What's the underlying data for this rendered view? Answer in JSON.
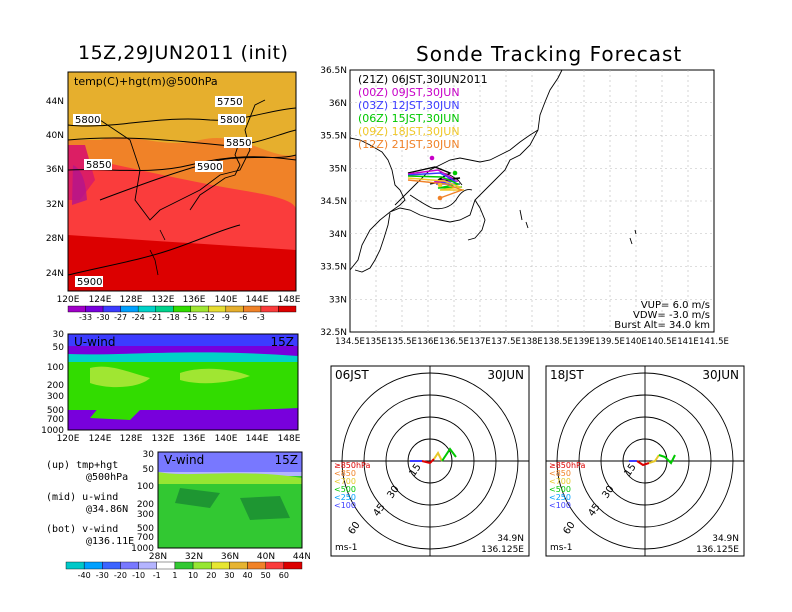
{
  "titles": {
    "left": "15Z,29JUN2011 (init)",
    "right": "Sonde Tracking Forecast"
  },
  "map500": {
    "label": "temp(C)+hgt(m)@500hPa",
    "lat_ticks": [
      "44N",
      "40N",
      "36N",
      "32N",
      "28N",
      "24N"
    ],
    "lon_ticks": [
      "120E",
      "124E",
      "128E",
      "132E",
      "136E",
      "140E",
      "144E",
      "148E"
    ],
    "contour_labels": [
      "5750",
      "5800",
      "5800",
      "5850",
      "5850",
      "5900",
      "5900"
    ],
    "colorbar_ticks": [
      "-33",
      "-30",
      "-27",
      "-24",
      "-21",
      "-18",
      "-15",
      "-12",
      "-9",
      "-6",
      "-3"
    ],
    "colorbar_colors": [
      "#a000c8",
      "#7800dc",
      "#3c3cff",
      "#00a0ff",
      "#00d2c8",
      "#00d28c",
      "#32dc00",
      "#a0e632",
      "#e6dc32",
      "#e6af2d",
      "#f08228",
      "#fa3c3c",
      "#dc0000"
    ]
  },
  "uwind": {
    "label": "U-wind",
    "time": "15Z",
    "p_ticks": [
      "30",
      "50",
      "100",
      "200",
      "300",
      "500",
      "700",
      "1000"
    ],
    "lon_ticks": [
      "120E",
      "124E",
      "128E",
      "132E",
      "136E",
      "140E",
      "144E",
      "148E"
    ]
  },
  "vwind": {
    "label": "V-wind",
    "time": "15Z",
    "p_ticks": [
      "30",
      "50",
      "100",
      "200",
      "300",
      "500",
      "700",
      "1000"
    ],
    "lat_ticks": [
      "28N",
      "32N",
      "36N",
      "40N",
      "44N"
    ],
    "colorbar_ticks": [
      "-40",
      "-30",
      "-20",
      "-10",
      "-1",
      "1",
      "10",
      "20",
      "30",
      "40",
      "50",
      "60"
    ],
    "colorbar_colors": [
      "#00c8c8",
      "#00a0ff",
      "#3c64ff",
      "#7878ff",
      "#b4b4ff",
      "#ffffff",
      "#32c832",
      "#96e632",
      "#e6e632",
      "#e6b432",
      "#f08228",
      "#fa3c3c",
      "#dc0000"
    ]
  },
  "notes": [
    {
      "a": "(up) tmp+hgt",
      "b": "@500hPa"
    },
    {
      "a": "(mid) u-wind",
      "b": "@34.86N"
    },
    {
      "a": "(bot) v-wind",
      "b": "@136.11E"
    }
  ],
  "track": {
    "legend": [
      {
        "text": "(21Z) 06JST,30JUN2011",
        "color": "#000000"
      },
      {
        "text": "(00Z) 09JST,30JUN",
        "color": "#c800c8"
      },
      {
        "text": "(03Z) 12JST,30JUN",
        "color": "#3c3cff"
      },
      {
        "text": "(06Z) 15JST,30JUN",
        "color": "#00c800"
      },
      {
        "text": "(09Z) 18JST,30JUN",
        "color": "#f0c828"
      },
      {
        "text": "(12Z) 21JST,30JUN",
        "color": "#f08228"
      }
    ],
    "lat_ticks": [
      "36.5N",
      "36N",
      "35.5N",
      "35N",
      "34.5N",
      "34N",
      "33.5N",
      "33N",
      "32.5N"
    ],
    "lon_ticks": [
      "134.5E",
      "135E",
      "135.5E",
      "136E",
      "136.5E",
      "137E",
      "137.5E",
      "138E",
      "138.5E",
      "139E",
      "139.5E",
      "140E",
      "140.5E",
      "141E",
      "141.5E"
    ],
    "params": [
      "VUP= 6.0 m/s",
      "VDW= -3.0 m/s",
      "Burst Alt= 34.0 km"
    ]
  },
  "hodo": [
    {
      "time": "06JST",
      "date": "30JUN",
      "rings": [
        "15",
        "30",
        "45",
        "60"
      ],
      "lat": "34.9N",
      "lon": "136.125E",
      "unit": "ms-1"
    },
    {
      "time": "18JST",
      "date": "30JUN",
      "rings": [
        "15",
        "30",
        "45",
        "60"
      ],
      "lat": "34.9N",
      "lon": "136.125E",
      "unit": "ms-1"
    }
  ],
  "hodo_levels": [
    {
      "text": "≥850hPa",
      "color": "#dc0000"
    },
    {
      "text": "<850",
      "color": "#f08228"
    },
    {
      "text": "<700",
      "color": "#e6c828"
    },
    {
      "text": "<500",
      "color": "#00c800"
    },
    {
      "text": "<250",
      "color": "#00a0ff"
    },
    {
      "text": "<100",
      "color": "#3c3cff"
    }
  ]
}
